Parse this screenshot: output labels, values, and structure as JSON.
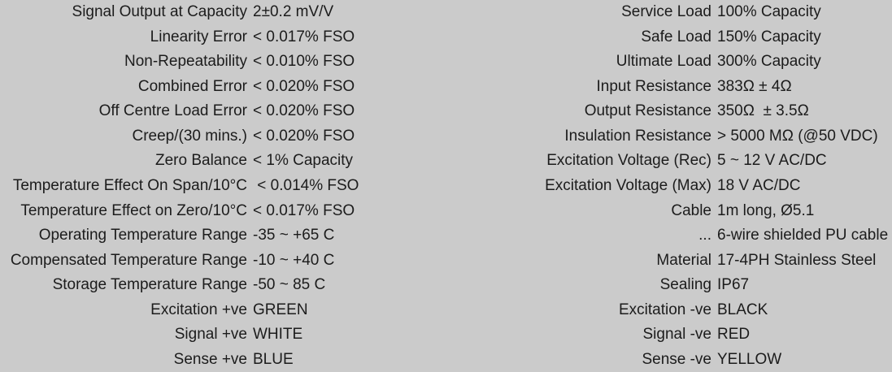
{
  "theme": {
    "background": "#cbcbcb",
    "text_color": "#1c1c1c"
  },
  "spec_sheet": {
    "left_column": [
      {
        "label": "Signal Output at Capacity",
        "value": "2±0.2 mV/V"
      },
      {
        "label": "Linearity Error",
        "value": "< 0.017% FSO"
      },
      {
        "label": "Non-Repeatability",
        "value": "< 0.010% FSO"
      },
      {
        "label": "Combined Error",
        "value": "< 0.020% FSO"
      },
      {
        "label": "Off Centre Load Error",
        "value": "< 0.020% FSO"
      },
      {
        "label": "Creep/(30 mins.)",
        "value": "< 0.020% FSO"
      },
      {
        "label": "Zero Balance",
        "value": "< 1% Capacity"
      },
      {
        "label": "Temperature Effect On Span/10°C",
        "value": " < 0.014% FSO"
      },
      {
        "label": "Temperature Effect on Zero/10°C",
        "value": "< 0.017% FSO"
      },
      {
        "label": "Operating Temperature Range",
        "value": "-35 ~ +65 C"
      },
      {
        "label": "Compensated Temperature Range",
        "value": "-10 ~ +40 C"
      },
      {
        "label": "Storage Temperature Range",
        "value": "-50 ~ 85 C"
      },
      {
        "label": "Excitation +ve",
        "value": "GREEN"
      },
      {
        "label": "Signal +ve",
        "value": "WHITE"
      },
      {
        "label": "Sense +ve",
        "value": "BLUE"
      }
    ],
    "right_column": [
      {
        "label": "Service Load",
        "value": "100% Capacity"
      },
      {
        "label": "Safe Load",
        "value": "150% Capacity"
      },
      {
        "label": "Ultimate Load",
        "value": "300% Capacity"
      },
      {
        "label": "Input Resistance",
        "value": "383Ω ± 4Ω"
      },
      {
        "label": "Output Resistance",
        "value": "350Ω  ± 3.5Ω"
      },
      {
        "label": "Insulation Resistance",
        "value": "> 5000 MΩ (@50 VDC)"
      },
      {
        "label": "Excitation Voltage (Rec)",
        "value": "5 ~ 12 V AC/DC"
      },
      {
        "label": "Excitation Voltage (Max)",
        "value": "18 V AC/DC"
      },
      {
        "label": "Cable",
        "value": "1m long, Ø5.1"
      },
      {
        "label": "...",
        "value": "6-wire shielded PU cable"
      },
      {
        "label": "Material",
        "value": "17-4PH Stainless Steel"
      },
      {
        "label": "Sealing",
        "value": "IP67"
      },
      {
        "label": "Excitation -ve",
        "value": "BLACK"
      },
      {
        "label": "Signal -ve",
        "value": "RED"
      },
      {
        "label": "Sense -ve",
        "value": "YELLOW"
      }
    ]
  }
}
